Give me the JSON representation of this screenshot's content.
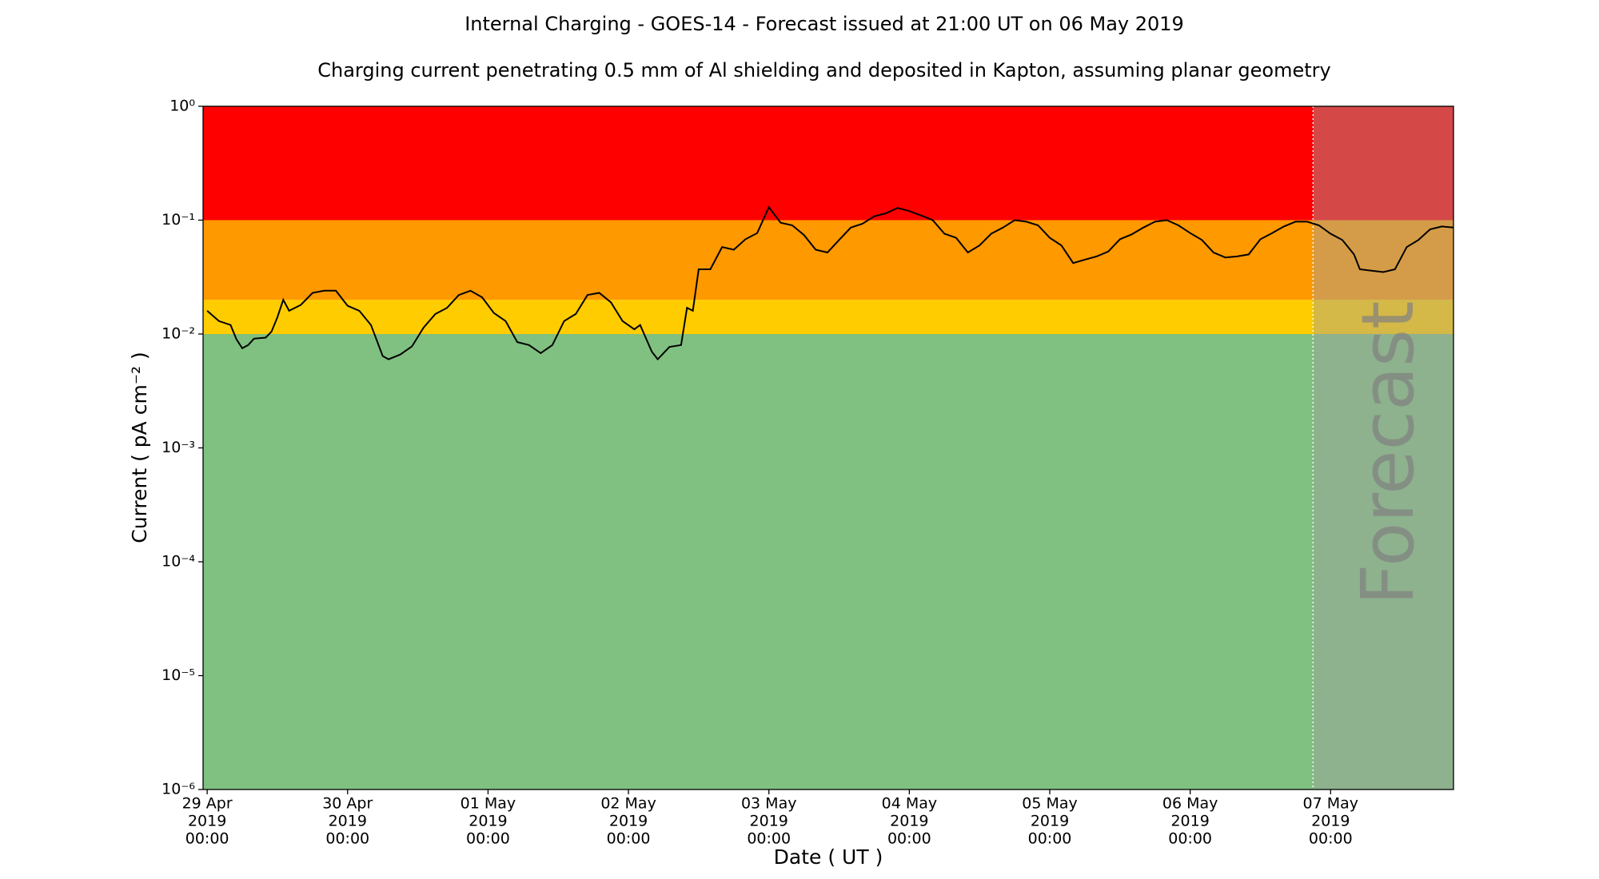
{
  "chart_data": {
    "type": "line",
    "title": "Internal Charging - GOES-14 - Forecast issued at 21:00 UT on 06 May 2019",
    "subtitle": "Charging current penetrating 0.5 mm of Al shielding and deposited in Kapton, assuming planar geometry",
    "xlabel": "Date ( UT )",
    "ylabel": "Current ( pA cm⁻² )",
    "log_y": true,
    "xlim": [
      "2019-04-28T23:18",
      "2019-05-07T21:00"
    ],
    "ylim": [
      1e-06,
      1
    ],
    "yticks": [
      {
        "value": 1e-06,
        "label": "10⁻⁶"
      },
      {
        "value": 1e-05,
        "label": "10⁻⁵"
      },
      {
        "value": 0.0001,
        "label": "10⁻⁴"
      },
      {
        "value": 0.001,
        "label": "10⁻³"
      },
      {
        "value": 0.01,
        "label": "10⁻²"
      },
      {
        "value": 0.1,
        "label": "10⁻¹"
      },
      {
        "value": 1,
        "label": "10⁰"
      }
    ],
    "xticks": [
      {
        "value": "2019-04-29T00:00",
        "label": [
          "29 Apr",
          "2019",
          "00:00"
        ]
      },
      {
        "value": "2019-04-30T00:00",
        "label": [
          "30 Apr",
          "2019",
          "00:00"
        ]
      },
      {
        "value": "2019-05-01T00:00",
        "label": [
          "01 May",
          "2019",
          "00:00"
        ]
      },
      {
        "value": "2019-05-02T00:00",
        "label": [
          "02 May",
          "2019",
          "00:00"
        ]
      },
      {
        "value": "2019-05-03T00:00",
        "label": [
          "03 May",
          "2019",
          "00:00"
        ]
      },
      {
        "value": "2019-05-04T00:00",
        "label": [
          "04 May",
          "2019",
          "00:00"
        ]
      },
      {
        "value": "2019-05-05T00:00",
        "label": [
          "05 May",
          "2019",
          "00:00"
        ]
      },
      {
        "value": "2019-05-06T00:00",
        "label": [
          "06 May",
          "2019",
          "00:00"
        ]
      },
      {
        "value": "2019-05-07T00:00",
        "label": [
          "07 May",
          "2019",
          "00:00"
        ]
      }
    ],
    "bands": [
      {
        "from": 1e-06,
        "to": 0.01,
        "color": "#80c080"
      },
      {
        "from": 0.01,
        "to": 0.02,
        "color": "#ffcc00"
      },
      {
        "from": 0.02,
        "to": 0.1,
        "color": "#ff9900"
      },
      {
        "from": 0.1,
        "to": 1,
        "color": "#ff0000"
      }
    ],
    "forecast_start": "2019-05-06T21:00",
    "forecast_label": "Forecast",
    "x": [
      "2019-04-29T00:00",
      "2019-04-29T02:00",
      "2019-04-29T04:00",
      "2019-04-29T05:00",
      "2019-04-29T06:00",
      "2019-04-29T07:00",
      "2019-04-29T08:00",
      "2019-04-29T10:00",
      "2019-04-29T11:00",
      "2019-04-29T12:00",
      "2019-04-29T13:00",
      "2019-04-29T14:00",
      "2019-04-29T16:00",
      "2019-04-29T18:00",
      "2019-04-29T20:00",
      "2019-04-29T22:00",
      "2019-04-30T00:00",
      "2019-04-30T02:00",
      "2019-04-30T04:00",
      "2019-04-30T06:00",
      "2019-04-30T07:00",
      "2019-04-30T09:00",
      "2019-04-30T11:00",
      "2019-04-30T13:00",
      "2019-04-30T15:00",
      "2019-04-30T17:00",
      "2019-04-30T19:00",
      "2019-04-30T21:00",
      "2019-04-30T23:00",
      "2019-05-01T01:00",
      "2019-05-01T03:00",
      "2019-05-01T05:00",
      "2019-05-01T07:00",
      "2019-05-01T09:00",
      "2019-05-01T11:00",
      "2019-05-01T13:00",
      "2019-05-01T15:00",
      "2019-05-01T17:00",
      "2019-05-01T19:00",
      "2019-05-01T21:00",
      "2019-05-01T23:00",
      "2019-05-02T01:00",
      "2019-05-02T02:00",
      "2019-05-02T04:00",
      "2019-05-02T05:00",
      "2019-05-02T07:00",
      "2019-05-02T09:00",
      "2019-05-02T10:00",
      "2019-05-02T11:00",
      "2019-05-02T12:00",
      "2019-05-02T14:00",
      "2019-05-02T16:00",
      "2019-05-02T18:00",
      "2019-05-02T20:00",
      "2019-05-02T22:00",
      "2019-05-03T00:00",
      "2019-05-03T02:00",
      "2019-05-03T04:00",
      "2019-05-03T06:00",
      "2019-05-03T08:00",
      "2019-05-03T10:00",
      "2019-05-03T12:00",
      "2019-05-03T14:00",
      "2019-05-03T16:00",
      "2019-05-03T18:00",
      "2019-05-03T20:00",
      "2019-05-03T22:00",
      "2019-05-04T00:00",
      "2019-05-04T02:00",
      "2019-05-04T04:00",
      "2019-05-04T06:00",
      "2019-05-04T08:00",
      "2019-05-04T10:00",
      "2019-05-04T12:00",
      "2019-05-04T14:00",
      "2019-05-04T16:00",
      "2019-05-04T18:00",
      "2019-05-04T20:00",
      "2019-05-04T22:00",
      "2019-05-05T00:00",
      "2019-05-05T02:00",
      "2019-05-05T04:00",
      "2019-05-05T06:00",
      "2019-05-05T08:00",
      "2019-05-05T10:00",
      "2019-05-05T12:00",
      "2019-05-05T14:00",
      "2019-05-05T16:00",
      "2019-05-05T18:00",
      "2019-05-05T20:00",
      "2019-05-05T22:00",
      "2019-05-06T00:00",
      "2019-05-06T02:00",
      "2019-05-06T04:00",
      "2019-05-06T06:00",
      "2019-05-06T08:00",
      "2019-05-06T10:00",
      "2019-05-06T12:00",
      "2019-05-06T14:00",
      "2019-05-06T16:00",
      "2019-05-06T18:00",
      "2019-05-06T20:00",
      "2019-05-06T22:00",
      "2019-05-07T00:00",
      "2019-05-07T02:00",
      "2019-05-07T04:00",
      "2019-05-07T05:00",
      "2019-05-07T07:00",
      "2019-05-07T09:00",
      "2019-05-07T11:00",
      "2019-05-07T13:00",
      "2019-05-07T15:00",
      "2019-05-07T17:00",
      "2019-05-07T19:00",
      "2019-05-07T21:00"
    ],
    "series": [
      {
        "color": "#000000",
        "values": [
          0.016,
          0.013,
          0.012,
          0.009,
          0.0075,
          0.008,
          0.0091,
          0.0093,
          0.0105,
          0.014,
          0.02,
          0.016,
          0.018,
          0.023,
          0.024,
          0.024,
          0.0177,
          0.016,
          0.012,
          0.0064,
          0.006,
          0.0066,
          0.0078,
          0.0114,
          0.015,
          0.017,
          0.022,
          0.024,
          0.021,
          0.0153,
          0.013,
          0.0085,
          0.008,
          0.0068,
          0.008,
          0.013,
          0.015,
          0.022,
          0.023,
          0.019,
          0.013,
          0.011,
          0.012,
          0.007,
          0.006,
          0.0077,
          0.008,
          0.017,
          0.016,
          0.037,
          0.037,
          0.058,
          0.055,
          0.068,
          0.077,
          0.13,
          0.095,
          0.09,
          0.074,
          0.055,
          0.052,
          0.067,
          0.086,
          0.093,
          0.108,
          0.115,
          0.128,
          0.12,
          0.11,
          0.1,
          0.076,
          0.07,
          0.052,
          0.06,
          0.076,
          0.086,
          0.1,
          0.097,
          0.09,
          0.07,
          0.06,
          0.042,
          0.045,
          0.048,
          0.053,
          0.068,
          0.075,
          0.086,
          0.097,
          0.1,
          0.09,
          0.077,
          0.067,
          0.052,
          0.047,
          0.048,
          0.05,
          0.068,
          0.077,
          0.088,
          0.097,
          0.097,
          0.09,
          0.076,
          0.067,
          0.05,
          0.037,
          0.036,
          0.035,
          0.037,
          0.058,
          0.067,
          0.083,
          0.088,
          0.086
        ]
      }
    ]
  }
}
